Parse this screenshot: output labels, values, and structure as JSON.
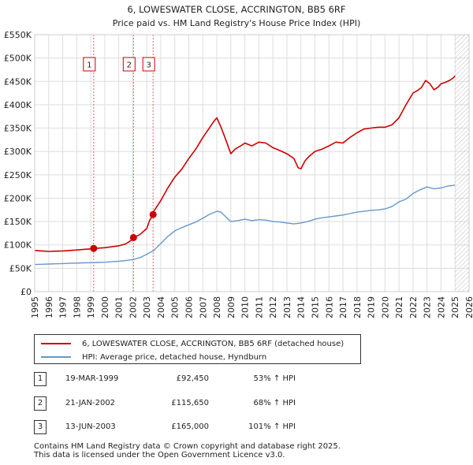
{
  "chart_data": {
    "type": "line",
    "title": "6, LOWESWATER CLOSE, ACCRINGTON, BB5 6RF",
    "subtitle": "Price paid vs. HM Land Registry's House Price Index (HPI)",
    "xlabel": "",
    "ylabel": "",
    "xlim": [
      1995,
      2026
    ],
    "ylim": [
      0,
      550000
    ],
    "yticks": [
      {
        "value": 0,
        "label": "£0"
      },
      {
        "value": 50000,
        "label": "£50K"
      },
      {
        "value": 100000,
        "label": "£100K"
      },
      {
        "value": 150000,
        "label": "£150K"
      },
      {
        "value": 200000,
        "label": "£200K"
      },
      {
        "value": 250000,
        "label": "£250K"
      },
      {
        "value": 300000,
        "label": "£300K"
      },
      {
        "value": 350000,
        "label": "£350K"
      },
      {
        "value": 400000,
        "label": "£400K"
      },
      {
        "value": 450000,
        "label": "£450K"
      },
      {
        "value": 500000,
        "label": "£500K"
      },
      {
        "value": 550000,
        "label": "£550K"
      }
    ],
    "xticks": [
      "1995",
      "1996",
      "1997",
      "1998",
      "1999",
      "2000",
      "2001",
      "2002",
      "2003",
      "2004",
      "2005",
      "2006",
      "2007",
      "2008",
      "2009",
      "2010",
      "2011",
      "2012",
      "2013",
      "2014",
      "2015",
      "2016",
      "2017",
      "2018",
      "2019",
      "2020",
      "2021",
      "2022",
      "2023",
      "2024",
      "2025",
      "2026"
    ],
    "grid": true,
    "future_hatch_from": 2025.0,
    "series": [
      {
        "name": "6, LOWESWATER CLOSE, ACCRINGTON, BB5 6RF (detached house)",
        "color": "#cc0000",
        "x": [
          1995.0,
          1995.5,
          1996.0,
          1996.5,
          1997.0,
          1997.5,
          1998.0,
          1998.5,
          1999.0,
          1999.21,
          1999.5,
          2000.0,
          2000.5,
          2001.0,
          2001.5,
          2001.9,
          2002.05,
          2002.5,
          2003.0,
          2003.2,
          2003.45,
          2003.5,
          2004.0,
          2004.5,
          2005.0,
          2005.5,
          2006.0,
          2006.5,
          2007.0,
          2007.5,
          2007.8,
          2008.0,
          2008.3,
          2008.7,
          2009.0,
          2009.3,
          2009.7,
          2010.0,
          2010.5,
          2011.0,
          2011.5,
          2012.0,
          2012.5,
          2013.0,
          2013.5,
          2013.8,
          2014.0,
          2014.3,
          2014.6,
          2015.0,
          2015.5,
          2016.0,
          2016.5,
          2017.0,
          2017.5,
          2018.0,
          2018.5,
          2019.0,
          2019.5,
          2020.0,
          2020.5,
          2021.0,
          2021.5,
          2022.0,
          2022.3,
          2022.6,
          2022.9,
          2023.2,
          2023.5,
          2023.8,
          2024.0,
          2024.3,
          2024.6,
          2024.9,
          2025.0
        ],
        "values": [
          88000,
          87000,
          86000,
          86500,
          87000,
          88000,
          89000,
          90500,
          91500,
          92450,
          93000,
          94000,
          96000,
          98000,
          102000,
          110000,
          115650,
          122000,
          135000,
          152000,
          165000,
          172000,
          195000,
          222000,
          245000,
          262000,
          285000,
          305000,
          330000,
          352000,
          365000,
          372000,
          352000,
          320000,
          295000,
          305000,
          312000,
          318000,
          312000,
          320000,
          318000,
          308000,
          302000,
          295000,
          285000,
          265000,
          263000,
          280000,
          290000,
          300000,
          305000,
          312000,
          320000,
          318000,
          330000,
          340000,
          348000,
          350000,
          352000,
          352000,
          357000,
          372000,
          400000,
          425000,
          430000,
          437000,
          452000,
          445000,
          432000,
          438000,
          445000,
          448000,
          452000,
          458000,
          462000
        ]
      },
      {
        "name": "HPI: Average price, detached house, Hyndburn",
        "color": "#6699cc",
        "x": [
          1995.0,
          1995.5,
          1996.0,
          1996.5,
          1997.0,
          1997.5,
          1998.0,
          1998.5,
          1999.0,
          1999.5,
          2000.0,
          2000.5,
          2001.0,
          2001.5,
          2002.0,
          2002.5,
          2003.0,
          2003.5,
          2004.0,
          2004.5,
          2005.0,
          2005.5,
          2006.0,
          2006.5,
          2007.0,
          2007.5,
          2008.0,
          2008.3,
          2008.7,
          2009.0,
          2009.5,
          2010.0,
          2010.5,
          2011.0,
          2011.5,
          2012.0,
          2012.5,
          2013.0,
          2013.5,
          2014.0,
          2014.5,
          2015.0,
          2015.5,
          2016.0,
          2016.5,
          2017.0,
          2017.5,
          2018.0,
          2018.5,
          2019.0,
          2019.5,
          2020.0,
          2020.5,
          2021.0,
          2021.5,
          2022.0,
          2022.5,
          2023.0,
          2023.5,
          2024.0,
          2024.5,
          2025.0
        ],
        "values": [
          58000,
          58500,
          59000,
          59500,
          60000,
          60500,
          61000,
          61500,
          62000,
          62500,
          63000,
          64000,
          65000,
          66500,
          68500,
          72500,
          80000,
          88000,
          103000,
          118000,
          130000,
          137000,
          143000,
          149000,
          157000,
          166000,
          172000,
          170000,
          158000,
          150000,
          152000,
          155000,
          152000,
          154000,
          153000,
          150000,
          149000,
          147000,
          145000,
          147000,
          150000,
          155000,
          158000,
          160000,
          162000,
          164000,
          167000,
          170000,
          172000,
          174000,
          175000,
          177000,
          182000,
          192000,
          198000,
          210000,
          218000,
          224000,
          220000,
          222000,
          226000,
          228000
        ]
      }
    ],
    "sales": [
      {
        "label": "1",
        "year": 1999.21,
        "price": 92450
      },
      {
        "label": "2",
        "year": 2002.05,
        "price": 115650
      },
      {
        "label": "3",
        "year": 2003.45,
        "price": 165000
      }
    ]
  },
  "legend": {
    "property_label": "6, LOWESWATER CLOSE, ACCRINGTON, BB5 6RF (detached house)",
    "hpi_label": "HPI: Average price, detached house, Hyndburn",
    "property_color": "#cc0000",
    "hpi_color": "#6699cc"
  },
  "transactions": [
    {
      "num": "1",
      "date": "19-MAR-1999",
      "price": "£92,450",
      "hpi": "53% ↑ HPI"
    },
    {
      "num": "2",
      "date": "21-JAN-2002",
      "price": "£115,650",
      "hpi": "68% ↑ HPI"
    },
    {
      "num": "3",
      "date": "13-JUN-2003",
      "price": "£165,000",
      "hpi": "101% ↑ HPI"
    }
  ],
  "footer": {
    "line1": "Contains HM Land Registry data © Crown copyright and database right 2025.",
    "line2": "This data is licensed under the Open Government Licence v3.0."
  }
}
